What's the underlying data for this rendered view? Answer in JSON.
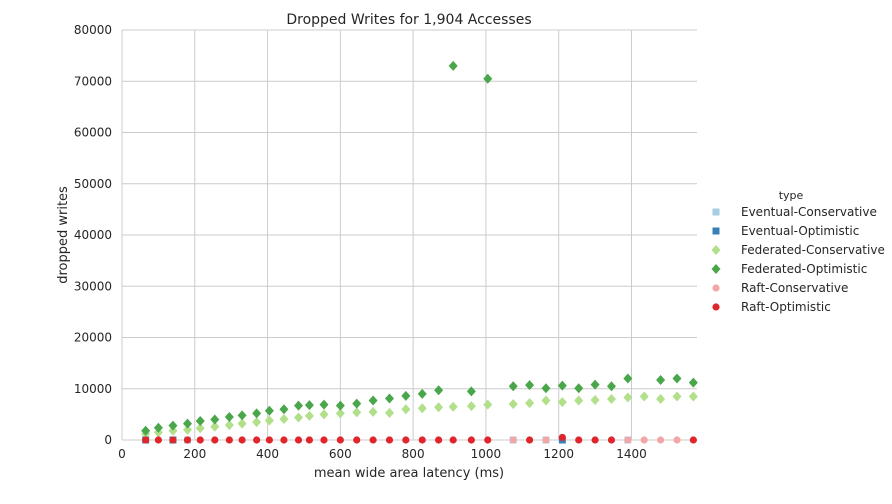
{
  "chart_data": {
    "type": "scatter",
    "title": "Dropped Writes for 1,904 Accesses",
    "xlabel": "mean wide area latency (ms)",
    "ylabel": "dropped writes",
    "xlim": [
      0,
      1580
    ],
    "ylim": [
      0,
      80000
    ],
    "xticks": [
      "0",
      "200",
      "400",
      "600",
      "800",
      "1000",
      "1200",
      "1400"
    ],
    "yticks": [
      "0",
      "10000",
      "20000",
      "30000",
      "40000",
      "50000",
      "60000",
      "70000",
      "80000"
    ],
    "xtick_values": [
      0,
      200,
      400,
      600,
      800,
      1000,
      1200,
      1400
    ],
    "ytick_values": [
      0,
      10000,
      20000,
      30000,
      40000,
      50000,
      60000,
      70000,
      80000
    ],
    "grid": true,
    "legend": {
      "title": "type",
      "placement": "right"
    },
    "series": [
      {
        "name": "Eventual-Conservative",
        "marker": "square",
        "color": "#a6cee3",
        "points": [
          [
            180,
            0
          ],
          [
            1075,
            0
          ],
          [
            1165,
            0
          ],
          [
            1390,
            0
          ]
        ]
      },
      {
        "name": "Eventual-Optimistic",
        "marker": "square",
        "color": "#3a7fb5",
        "points": [
          [
            65,
            0
          ],
          [
            140,
            0
          ],
          [
            1210,
            0
          ]
        ]
      },
      {
        "name": "Federated-Conservative",
        "marker": "diamond",
        "color": "#b2df8a",
        "points": [
          [
            65,
            1200
          ],
          [
            100,
            1500
          ],
          [
            140,
            1800
          ],
          [
            180,
            2000
          ],
          [
            215,
            2300
          ],
          [
            255,
            2600
          ],
          [
            295,
            2900
          ],
          [
            330,
            3200
          ],
          [
            370,
            3500
          ],
          [
            405,
            3800
          ],
          [
            445,
            4100
          ],
          [
            485,
            4400
          ],
          [
            515,
            4700
          ],
          [
            555,
            5000
          ],
          [
            600,
            5200
          ],
          [
            645,
            5400
          ],
          [
            690,
            5500
          ],
          [
            735,
            5300
          ],
          [
            780,
            6000
          ],
          [
            825,
            6200
          ],
          [
            870,
            6400
          ],
          [
            910,
            6500
          ],
          [
            960,
            6600
          ],
          [
            1005,
            6900
          ],
          [
            1075,
            7000
          ],
          [
            1120,
            7200
          ],
          [
            1165,
            7700
          ],
          [
            1210,
            7400
          ],
          [
            1255,
            7700
          ],
          [
            1300,
            7800
          ],
          [
            1345,
            8000
          ],
          [
            1390,
            8300
          ],
          [
            1435,
            8500
          ],
          [
            1480,
            8000
          ],
          [
            1525,
            8500
          ],
          [
            1570,
            8500
          ]
        ]
      },
      {
        "name": "Federated-Optimistic",
        "marker": "diamond",
        "color": "#4aa64a",
        "points": [
          [
            65,
            1800
          ],
          [
            100,
            2400
          ],
          [
            140,
            2800
          ],
          [
            180,
            3200
          ],
          [
            215,
            3700
          ],
          [
            255,
            4000
          ],
          [
            295,
            4500
          ],
          [
            330,
            4800
          ],
          [
            370,
            5200
          ],
          [
            405,
            5700
          ],
          [
            445,
            6000
          ],
          [
            485,
            6700
          ],
          [
            515,
            6800
          ],
          [
            555,
            6900
          ],
          [
            600,
            6700
          ],
          [
            645,
            7100
          ],
          [
            690,
            7700
          ],
          [
            735,
            8100
          ],
          [
            780,
            8600
          ],
          [
            825,
            9000
          ],
          [
            870,
            9700
          ],
          [
            910,
            73000
          ],
          [
            960,
            9500
          ],
          [
            1005,
            70500
          ],
          [
            1075,
            10500
          ],
          [
            1120,
            10700
          ],
          [
            1165,
            10100
          ],
          [
            1210,
            10600
          ],
          [
            1255,
            10100
          ],
          [
            1300,
            10800
          ],
          [
            1345,
            10500
          ],
          [
            1390,
            12000
          ],
          [
            1480,
            11700
          ],
          [
            1525,
            12000
          ],
          [
            1570,
            11200
          ]
        ]
      },
      {
        "name": "Raft-Conservative",
        "marker": "circle",
        "color": "#f4a6a6",
        "points": [
          [
            1075,
            0
          ],
          [
            1165,
            0
          ],
          [
            1390,
            0
          ],
          [
            1435,
            0
          ],
          [
            1480,
            0
          ],
          [
            1525,
            0
          ]
        ]
      },
      {
        "name": "Raft-Optimistic",
        "marker": "circle",
        "color": "#e0262a",
        "points": [
          [
            65,
            0
          ],
          [
            100,
            0
          ],
          [
            140,
            0
          ],
          [
            180,
            0
          ],
          [
            215,
            0
          ],
          [
            255,
            0
          ],
          [
            295,
            0
          ],
          [
            330,
            0
          ],
          [
            370,
            0
          ],
          [
            405,
            0
          ],
          [
            445,
            0
          ],
          [
            485,
            0
          ],
          [
            515,
            0
          ],
          [
            555,
            0
          ],
          [
            600,
            0
          ],
          [
            645,
            0
          ],
          [
            690,
            0
          ],
          [
            735,
            0
          ],
          [
            780,
            0
          ],
          [
            825,
            0
          ],
          [
            870,
            0
          ],
          [
            910,
            0
          ],
          [
            960,
            0
          ],
          [
            1005,
            0
          ],
          [
            1120,
            0
          ],
          [
            1210,
            500
          ],
          [
            1255,
            0
          ],
          [
            1300,
            0
          ],
          [
            1345,
            0
          ],
          [
            1570,
            0
          ]
        ]
      }
    ]
  }
}
